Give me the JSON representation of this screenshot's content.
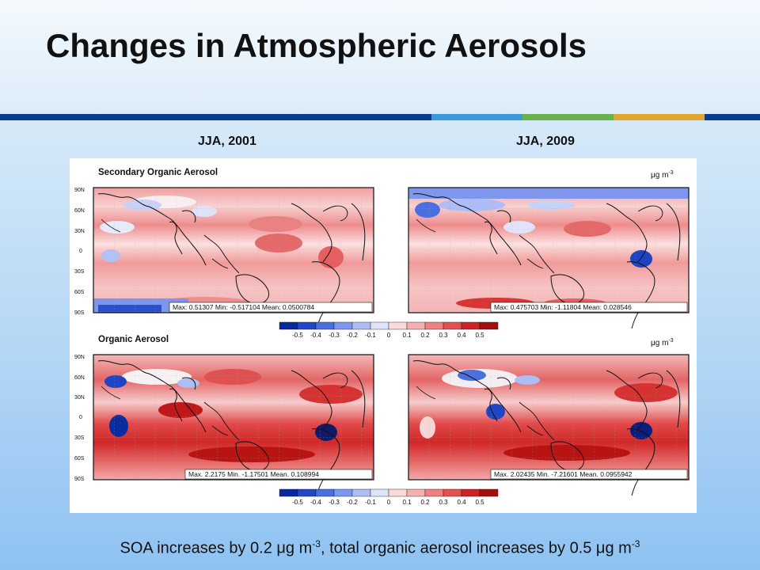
{
  "slide": {
    "title": "Changes in Atmospheric Aerosols",
    "accent_colors": [
      "#0a3d8f",
      "#3a9ad9",
      "#6ab04c",
      "#e0a72e",
      "#0a3d8f"
    ],
    "column_labels": [
      "JJA, 2001",
      "JJA, 2009"
    ],
    "caption": {
      "part1": "SOA increases by 0.2 μg m",
      "exp1": "-3",
      "part2": ", total organic aerosol increases by 0.5 μg m",
      "exp2": "-3"
    }
  },
  "figure": {
    "unit": "μg m",
    "unit_exp": "-3",
    "lat_ticks": [
      "90N",
      "60N",
      "30N",
      "0",
      "30S",
      "60S",
      "90S"
    ],
    "colorbar_ticks": [
      "-0.5",
      "-0.4",
      "-0.3",
      "-0.2",
      "-0.1",
      "0",
      "0.1",
      "0.2",
      "0.3",
      "0.4",
      "0.5"
    ],
    "colorbar_colors": [
      "#08289c",
      "#2147c9",
      "#4a6fe0",
      "#7d97ee",
      "#aebdf5",
      "#dfe3fa",
      "#fadada",
      "#f5b0b0",
      "#ef8080",
      "#e25050",
      "#cc2424",
      "#a30f0f"
    ],
    "rows": [
      {
        "title": "Secondary Organic Aerosol",
        "panels": [
          {
            "stats": "Max: 0.51307  Min: -0.517104  Mean: 0.0500784"
          },
          {
            "stats": "Max: 0.475703  Min: -1.11804  Mean: 0.028546"
          }
        ]
      },
      {
        "title": "Organic Aerosol",
        "panels": [
          {
            "stats": "Max. 2.2175  Min. -1.17501  Mean. 0.108994"
          },
          {
            "stats": "Max. 2.02435  Min. -7.21601  Mean. 0.0955942"
          }
        ]
      }
    ]
  }
}
